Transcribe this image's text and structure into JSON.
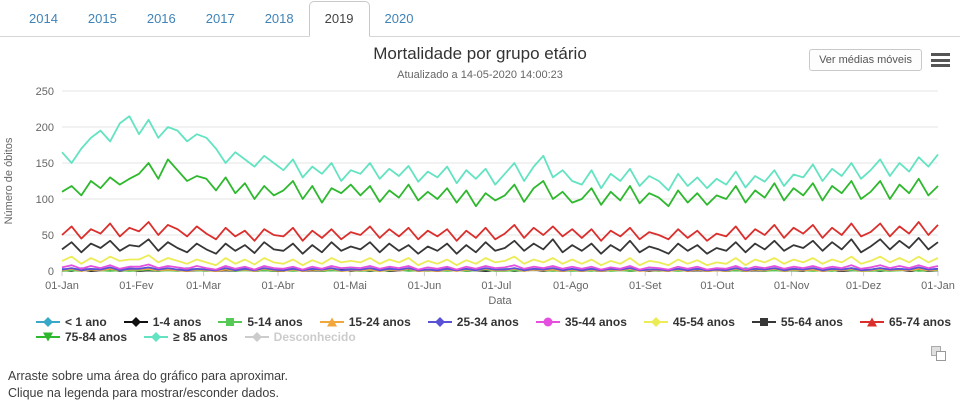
{
  "tabs": {
    "items": [
      {
        "label": "2014",
        "active": false
      },
      {
        "label": "2015",
        "active": false
      },
      {
        "label": "2016",
        "active": false
      },
      {
        "label": "2017",
        "active": false
      },
      {
        "label": "2018",
        "active": false
      },
      {
        "label": "2019",
        "active": true
      },
      {
        "label": "2020",
        "active": false
      }
    ]
  },
  "header": {
    "title": "Mortalidade por grupo etário",
    "subtitle": "Atualizado a 14-05-2020 14:00:23",
    "button_label": "Ver médias móveis",
    "menu_icon": "hamburger-icon"
  },
  "footer": {
    "line1": "Arraste sobre uma área do gráfico para aproximar.",
    "line2": "Clique na legenda para mostrar/esconder dados."
  },
  "copy_icon": "copy-icon",
  "chart_data": {
    "type": "line",
    "title": "Mortalidade por grupo etário",
    "subtitle": "Atualizado a 14-05-2020 14:00:23",
    "xlabel": "Data",
    "ylabel": "Número de óbitos",
    "ylim": [
      0,
      250
    ],
    "yticks": [
      0,
      50,
      100,
      150,
      200,
      250
    ],
    "grid": "horizontal",
    "legend_position": "bottom",
    "xtick_labels": [
      "01-Jan",
      "01-Fev",
      "01-Mar",
      "01-Abr",
      "01-Mai",
      "01-Jun",
      "01-Jul",
      "01-Ago",
      "01-Set",
      "01-Out",
      "01-Nov",
      "01-Dez",
      "01-Jan"
    ],
    "xtick_days": [
      0,
      31,
      59,
      90,
      120,
      151,
      181,
      212,
      243,
      273,
      304,
      334,
      365
    ],
    "x_range": "01-Jan-2019 to 01-Jan-2020, values sampled every 4 days (estimated from pixels)",
    "point_interval_days": 4,
    "series": [
      {
        "key": "lt1",
        "name": "< 1 ano",
        "color": "#38a8c8",
        "marker": "diamond",
        "visible": true,
        "values": [
          3,
          1,
          4,
          2,
          3,
          1,
          2,
          4,
          2,
          4,
          1,
          3,
          2,
          4,
          2,
          3,
          1,
          3,
          1,
          4,
          2,
          3,
          1,
          2,
          4,
          1,
          3,
          1,
          3,
          2,
          3,
          1,
          3,
          2,
          4,
          1,
          3,
          1,
          2,
          2,
          4,
          1,
          2,
          3,
          1,
          2,
          3,
          1,
          3,
          2,
          4,
          1,
          3,
          2,
          1,
          3,
          1,
          3,
          2,
          4,
          1,
          2,
          2,
          1,
          3,
          1,
          3,
          1,
          2,
          3,
          1,
          4,
          2,
          3,
          1,
          2,
          3,
          1,
          3,
          1,
          3,
          2,
          4,
          2,
          2,
          4,
          2,
          3,
          1,
          3,
          2,
          3
        ]
      },
      {
        "key": "1-4",
        "name": "1-4 anos",
        "color": "#111111",
        "marker": "diamond",
        "visible": true,
        "values": [
          1,
          0,
          2,
          0,
          1,
          2,
          0,
          1,
          0,
          1,
          0,
          2,
          1,
          0,
          1,
          1,
          0,
          1,
          0,
          2,
          0,
          1,
          0,
          0,
          2,
          0,
          1,
          0,
          1,
          2,
          0,
          1,
          0,
          1,
          0,
          1,
          2,
          0,
          1,
          0,
          1,
          2,
          0,
          1,
          0,
          1,
          1,
          0,
          1,
          2,
          0,
          1,
          0,
          1,
          0,
          1,
          0,
          1,
          2,
          0,
          1,
          0,
          1,
          0,
          2,
          0,
          1,
          0,
          1,
          0,
          1,
          0,
          1,
          0,
          2,
          0,
          1,
          0,
          2,
          0,
          1,
          0,
          1,
          1,
          1,
          0,
          1,
          2,
          0,
          1,
          0,
          1
        ]
      },
      {
        "key": "5-14",
        "name": "5-14 anos",
        "color": "#57c957",
        "marker": "square",
        "visible": true,
        "values": [
          0,
          1,
          0,
          2,
          1,
          0,
          1,
          0,
          1,
          2,
          0,
          1,
          0,
          1,
          1,
          0,
          1,
          2,
          0,
          1,
          0,
          1,
          0,
          1,
          0,
          1,
          2,
          0,
          1,
          0,
          1,
          0,
          1,
          0,
          1,
          2,
          0,
          1,
          0,
          1,
          0,
          1,
          0,
          1,
          2,
          0,
          0,
          1,
          0,
          2,
          1,
          0,
          1,
          0,
          1,
          0,
          2,
          0,
          1,
          0,
          1,
          1,
          0,
          1,
          0,
          1,
          2,
          0,
          1,
          0,
          1,
          0,
          2,
          0,
          1,
          0,
          1,
          1,
          0,
          1,
          0,
          2,
          1,
          0,
          0,
          1,
          0,
          1,
          2,
          0,
          1,
          1
        ]
      },
      {
        "key": "15-24",
        "name": "15-24 anos",
        "color": "#f2a73d",
        "marker": "triangle",
        "visible": true,
        "values": [
          1,
          3,
          0,
          2,
          1,
          3,
          1,
          2,
          2,
          3,
          1,
          2,
          1,
          0,
          2,
          1,
          0,
          2,
          1,
          2,
          0,
          3,
          1,
          0,
          2,
          0,
          2,
          1,
          3,
          0,
          1,
          1,
          2,
          0,
          2,
          1,
          3,
          0,
          1,
          0,
          2,
          0,
          2,
          1,
          3,
          1,
          1,
          3,
          0,
          2,
          1,
          2,
          0,
          2,
          0,
          2,
          0,
          2,
          1,
          3,
          0,
          1,
          1,
          0,
          2,
          0,
          2,
          0,
          1,
          0,
          3,
          0,
          2,
          1,
          3,
          0,
          2,
          1,
          2,
          0,
          2,
          1,
          3,
          0,
          1,
          3,
          1,
          2,
          1,
          3,
          1,
          2
        ]
      },
      {
        "key": "25-34",
        "name": "25-34 anos",
        "color": "#5a52d5",
        "marker": "diamond",
        "visible": true,
        "values": [
          2,
          4,
          1,
          3,
          2,
          5,
          1,
          3,
          3,
          5,
          2,
          4,
          2,
          1,
          3,
          2,
          1,
          4,
          1,
          3,
          1,
          4,
          2,
          1,
          3,
          1,
          3,
          2,
          4,
          1,
          2,
          2,
          4,
          1,
          3,
          2,
          4,
          1,
          2,
          1,
          3,
          1,
          3,
          1,
          4,
          2,
          2,
          4,
          1,
          3,
          2,
          4,
          1,
          3,
          1,
          3,
          1,
          3,
          2,
          4,
          1,
          2,
          2,
          1,
          3,
          1,
          3,
          1,
          2,
          1,
          4,
          1,
          3,
          2,
          4,
          1,
          3,
          2,
          4,
          1,
          3,
          2,
          4,
          1,
          2,
          4,
          2,
          3,
          2,
          5,
          2,
          3
        ]
      },
      {
        "key": "35-44",
        "name": "35-44 anos",
        "color": "#e44fe0",
        "marker": "circle",
        "visible": true,
        "values": [
          5,
          8,
          3,
          7,
          4,
          8,
          3,
          6,
          6,
          9,
          4,
          7,
          5,
          3,
          7,
          4,
          2,
          7,
          3,
          6,
          2,
          7,
          4,
          3,
          6,
          2,
          6,
          3,
          7,
          4,
          5,
          4,
          7,
          3,
          6,
          4,
          7,
          2,
          5,
          3,
          6,
          2,
          6,
          3,
          7,
          4,
          5,
          8,
          3,
          6,
          4,
          7,
          3,
          6,
          3,
          6,
          2,
          5,
          3,
          7,
          2,
          5,
          4,
          2,
          6,
          3,
          6,
          2,
          4,
          3,
          7,
          2,
          6,
          4,
          7,
          3,
          6,
          4,
          7,
          3,
          6,
          4,
          8,
          3,
          5,
          8,
          4,
          7,
          4,
          8,
          4,
          7
        ]
      },
      {
        "key": "45-54",
        "name": "45-54 anos",
        "color": "#ecec57",
        "marker": "diamond",
        "visible": true,
        "values": [
          14,
          20,
          10,
          18,
          12,
          20,
          14,
          16,
          16,
          22,
          12,
          18,
          14,
          10,
          16,
          12,
          8,
          18,
          10,
          16,
          9,
          18,
          12,
          10,
          16,
          8,
          15,
          10,
          18,
          12,
          14,
          12,
          18,
          10,
          16,
          12,
          18,
          8,
          14,
          10,
          16,
          8,
          15,
          10,
          18,
          12,
          14,
          20,
          10,
          16,
          12,
          18,
          10,
          16,
          10,
          16,
          8,
          14,
          10,
          18,
          8,
          14,
          12,
          8,
          16,
          10,
          15,
          8,
          12,
          10,
          18,
          8,
          16,
          12,
          18,
          10,
          16,
          12,
          18,
          10,
          16,
          12,
          20,
          10,
          14,
          20,
          12,
          18,
          12,
          20,
          12,
          18
        ]
      },
      {
        "key": "55-64",
        "name": "55-64 anos",
        "color": "#373737",
        "marker": "square",
        "visible": true,
        "values": [
          30,
          40,
          26,
          38,
          32,
          42,
          28,
          36,
          34,
          44,
          28,
          40,
          32,
          26,
          38,
          30,
          24,
          38,
          28,
          36,
          25,
          40,
          30,
          28,
          38,
          24,
          36,
          26,
          40,
          28,
          34,
          30,
          40,
          26,
          38,
          28,
          36,
          24,
          34,
          28,
          38,
          24,
          36,
          26,
          40,
          28,
          32,
          42,
          28,
          38,
          30,
          44,
          26,
          36,
          28,
          38,
          24,
          36,
          28,
          42,
          26,
          34,
          30,
          24,
          38,
          28,
          36,
          24,
          32,
          28,
          40,
          26,
          38,
          30,
          42,
          28,
          36,
          32,
          42,
          28,
          40,
          30,
          44,
          26,
          34,
          44,
          30,
          42,
          32,
          46,
          30,
          40
        ]
      },
      {
        "key": "65-74",
        "name": "65-74 anos",
        "color": "#da2f2c",
        "marker": "triangle",
        "visible": true,
        "values": [
          50,
          62,
          45,
          58,
          52,
          66,
          48,
          60,
          55,
          68,
          50,
          64,
          58,
          48,
          62,
          52,
          44,
          60,
          48,
          56,
          42,
          58,
          50,
          48,
          60,
          42,
          56,
          46,
          58,
          44,
          54,
          50,
          62,
          46,
          58,
          48,
          60,
          44,
          56,
          48,
          58,
          42,
          56,
          46,
          60,
          44,
          52,
          64,
          46,
          60,
          50,
          62,
          48,
          58,
          46,
          58,
          42,
          56,
          48,
          60,
          44,
          54,
          50,
          44,
          58,
          46,
          56,
          42,
          52,
          48,
          62,
          44,
          58,
          50,
          64,
          46,
          60,
          52,
          64,
          46,
          60,
          50,
          66,
          48,
          54,
          66,
          48,
          62,
          52,
          68,
          50,
          64
        ]
      },
      {
        "key": "75-84",
        "name": "75-84 anos",
        "color": "#2eb82e",
        "marker": "triangle-down",
        "visible": true,
        "values": [
          110,
          118,
          105,
          125,
          115,
          130,
          120,
          128,
          135,
          150,
          128,
          155,
          140,
          125,
          132,
          128,
          112,
          130,
          108,
          122,
          100,
          118,
          105,
          112,
          125,
          100,
          118,
          95,
          115,
          108,
          120,
          105,
          118,
          96,
          112,
          102,
          120,
          98,
          110,
          100,
          115,
          95,
          112,
          90,
          108,
          98,
          105,
          120,
          96,
          115,
          125,
          100,
          110,
          95,
          100,
          115,
          92,
          110,
          98,
          118,
          94,
          108,
          102,
          90,
          112,
          95,
          108,
          92,
          105,
          100,
          118,
          95,
          112,
          102,
          122,
          98,
          115,
          105,
          122,
          98,
          118,
          108,
          125,
          100,
          110,
          125,
          100,
          120,
          108,
          128,
          105,
          118
        ]
      },
      {
        "key": "85",
        "name": "≥ 85 anos",
        "color": "#63e3c1",
        "marker": "diamond",
        "visible": true,
        "values": [
          165,
          150,
          170,
          185,
          195,
          180,
          205,
          215,
          190,
          210,
          185,
          200,
          195,
          180,
          190,
          185,
          170,
          150,
          165,
          155,
          145,
          160,
          150,
          140,
          155,
          130,
          145,
          135,
          150,
          125,
          140,
          135,
          150,
          128,
          142,
          132,
          146,
          124,
          138,
          130,
          145,
          122,
          140,
          128,
          142,
          120,
          135,
          150,
          125,
          145,
          160,
          130,
          140,
          125,
          120,
          140,
          115,
          135,
          125,
          142,
          118,
          132,
          125,
          112,
          135,
          118,
          130,
          115,
          128,
          120,
          138,
          116,
          132,
          124,
          140,
          118,
          134,
          130,
          148,
          125,
          142,
          132,
          150,
          128,
          140,
          155,
          132,
          150,
          138,
          158,
          145,
          162
        ]
      },
      {
        "key": "desc",
        "name": "Desconhecido",
        "color": "#cccccc",
        "marker": "diamond",
        "visible": false,
        "values": []
      }
    ]
  }
}
